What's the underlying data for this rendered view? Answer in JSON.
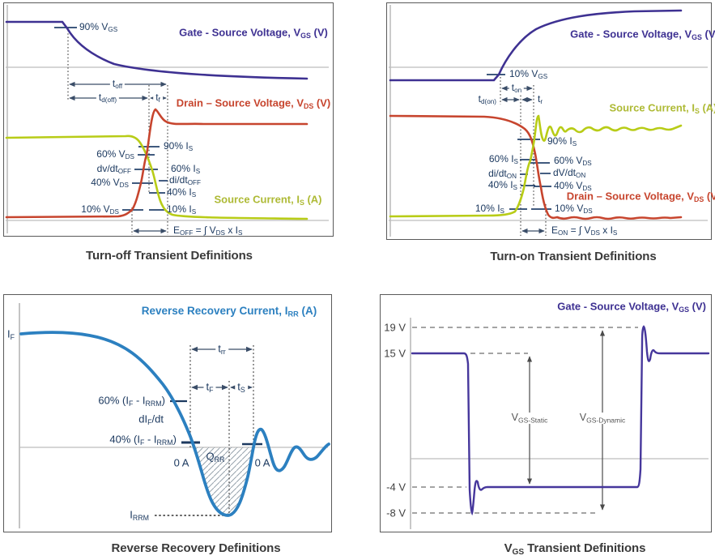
{
  "figure": {
    "colors": {
      "vgs_purple": "#3e3192",
      "vds_red": "#c7452e",
      "is_green": "#b8cc17",
      "irr_blue": "#2c80c0",
      "annotation_navy": "#1d3a60"
    },
    "turn_off": {
      "caption": "Turn-off Transient Definitions",
      "curve_labels": {
        "vgs": "Gate - Source Voltage, V_{GS} (V)",
        "vds": "Drain – Source Voltage, V_{DS} (V)",
        "is": "Source Current, I_{S} (A)"
      },
      "annotations": {
        "p90vgs": "90% V_{GS}",
        "toff": "t_{off}",
        "tdoff": "t_{d(off)}",
        "tf": "t_{f}",
        "p90is": "90% I_{S}",
        "p60vds": "60% V_{DS}",
        "dvdt": "dv/dt_{OFF}",
        "p60is": "60% I_{S}",
        "didt": "di/dt_{OFF}",
        "p40vds": "40% V_{DS}",
        "p40is": "40% I_{S}",
        "p10vds": "10% V_{DS}",
        "p10is": "10% I_{S}",
        "eoff": "E_{OFF} = ∫ V_{DS} x I_{S}"
      }
    },
    "turn_on": {
      "caption": "Turn-on Transient Definitions",
      "curve_labels": {
        "vgs": "Gate - Source Voltage, V_{GS} (V)",
        "is": "Source Current, I_{S} (A)",
        "vds": "Drain – Source Voltage, V_{DS} (V)"
      },
      "annotations": {
        "p10vgs": "10% V_{GS}",
        "ton": "t_{on}",
        "tdon": "t_{d(on)}",
        "tr": "t_{r}",
        "p90is": "90% I_{S}",
        "p60is": "60% I_{S}",
        "p60vds": "60% V_{DS}",
        "didt": "di/dt_{ON}",
        "dvdt": "dV/dt_{ON}",
        "p40is": "40% I_{S}",
        "p40vds": "40% V_{DS}",
        "p10is": "10% I_{S}",
        "p10vds": "10% V_{DS}",
        "eon": "E_{ON} = ∫ V_{DS} x I_{S}"
      }
    },
    "reverse_recovery": {
      "caption": "Reverse Recovery Definitions",
      "title": "Reverse Recovery Current, I_{RR} (A)",
      "annotations": {
        "if": "I_{F}",
        "trr": "t_{rr}",
        "tf": "t_{F}",
        "ts": "t_{S}",
        "p60": "60% (I_{F} - I_{RRM})",
        "difdt": "dI_{F}/dt",
        "p40": "40% (I_{F} - I_{RRM})",
        "oa_left": "0 A",
        "qrr": "Q_{RR}",
        "oa_right": "0 A",
        "irrm": "I_{RRM}"
      }
    },
    "vgs_transient": {
      "caption": "V_{GS} Transient Definitions",
      "title": "Gate - Source Voltage, V_{GS} (V)",
      "axis_labels": {
        "v19": "19 V",
        "v15": "15 V",
        "vm4": "-4 V",
        "vm8": "-8 V"
      },
      "annotations": {
        "static": "V_{GS-Static}",
        "dynamic": "V_{GS-Dynamic}"
      }
    }
  }
}
